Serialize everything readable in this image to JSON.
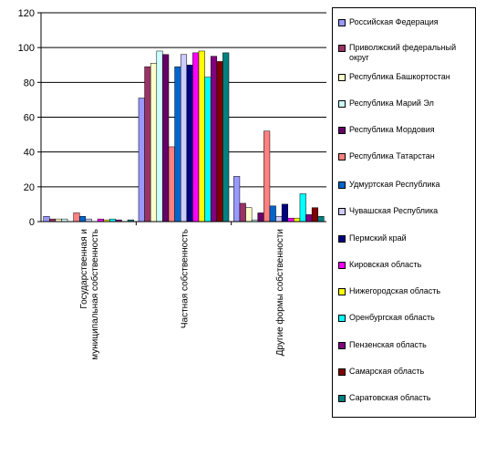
{
  "chart_data": {
    "type": "bar",
    "categories": [
      "Государственная и муниципальная собственность",
      "Частная собственность",
      "Другие формы собственности"
    ],
    "ylim": [
      0,
      120
    ],
    "yticks": [
      0,
      20,
      40,
      60,
      80,
      100,
      120
    ],
    "grid": true,
    "legend_position": "right",
    "series": [
      {
        "name": "Российская Федерация",
        "color": "#9999FF",
        "values": [
          3,
          71,
          26
        ]
      },
      {
        "name": "Приволжский федеральный округ",
        "color": "#993366",
        "values": [
          1.5,
          89,
          10.5
        ]
      },
      {
        "name": "Республика Башкортостан",
        "color": "#FFFFCC",
        "values": [
          1.5,
          91,
          8
        ]
      },
      {
        "name": "Республика Марий Эл",
        "color": "#CCFFFF",
        "values": [
          1.5,
          98,
          1
        ]
      },
      {
        "name": "Республика Мордовия",
        "color": "#660066",
        "values": [
          0,
          96,
          5
        ]
      },
      {
        "name": "Республика Татарстан",
        "color": "#FF8080",
        "values": [
          5,
          43,
          52
        ]
      },
      {
        "name": "Удмуртская Республика",
        "color": "#0066CC",
        "values": [
          3,
          89,
          9
        ]
      },
      {
        "name": "Чувашская Республика",
        "color": "#CCCCFF",
        "values": [
          1.5,
          96,
          3
        ]
      },
      {
        "name": "Пермский край",
        "color": "#000080",
        "values": [
          0,
          90,
          10
        ]
      },
      {
        "name": "Кировская область",
        "color": "#FF00FF",
        "values": [
          1.5,
          97,
          2
        ]
      },
      {
        "name": "Нижегородская область",
        "color": "#FFFF00",
        "values": [
          1,
          98,
          2
        ]
      },
      {
        "name": "Оренбургская область",
        "color": "#00FFFF",
        "values": [
          1.5,
          83,
          16
        ]
      },
      {
        "name": "Пензенская область",
        "color": "#800080",
        "values": [
          1,
          95,
          4
        ]
      },
      {
        "name": "Самарская область",
        "color": "#800000",
        "values": [
          0,
          92,
          8
        ]
      },
      {
        "name": "Саратовская область",
        "color": "#008080",
        "values": [
          1,
          97,
          3
        ]
      }
    ]
  }
}
